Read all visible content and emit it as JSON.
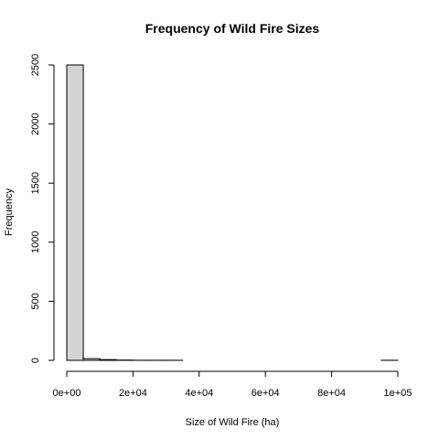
{
  "chart_data": {
    "type": "bar",
    "title": "Frequency of Wild Fire Sizes",
    "xlabel": "Size of Wild Fire (ha)",
    "ylabel": "Frequency",
    "bin_width": 5000,
    "x": [
      0,
      5000,
      10000,
      15000,
      20000,
      25000,
      30000,
      35000,
      40000,
      45000,
      50000,
      55000,
      60000,
      65000,
      70000,
      75000,
      80000,
      85000,
      90000,
      95000
    ],
    "values": [
      2500,
      15,
      6,
      2,
      1,
      1,
      1,
      0,
      0,
      0,
      0,
      0,
      0,
      0,
      0,
      0,
      0,
      0,
      0,
      1
    ],
    "xlim": [
      0,
      100000
    ],
    "ylim": [
      0,
      2500
    ],
    "xticks": [
      0,
      20000,
      40000,
      60000,
      80000,
      100000
    ],
    "xtick_labels": [
      "0e+00",
      "2e+04",
      "4e+04",
      "6e+04",
      "8e+04",
      "1e+05"
    ],
    "yticks": [
      0,
      500,
      1000,
      1500,
      2000,
      2500
    ],
    "ytick_labels": [
      "0",
      "500",
      "1000",
      "1500",
      "2000",
      "2500"
    ],
    "grid": false
  }
}
